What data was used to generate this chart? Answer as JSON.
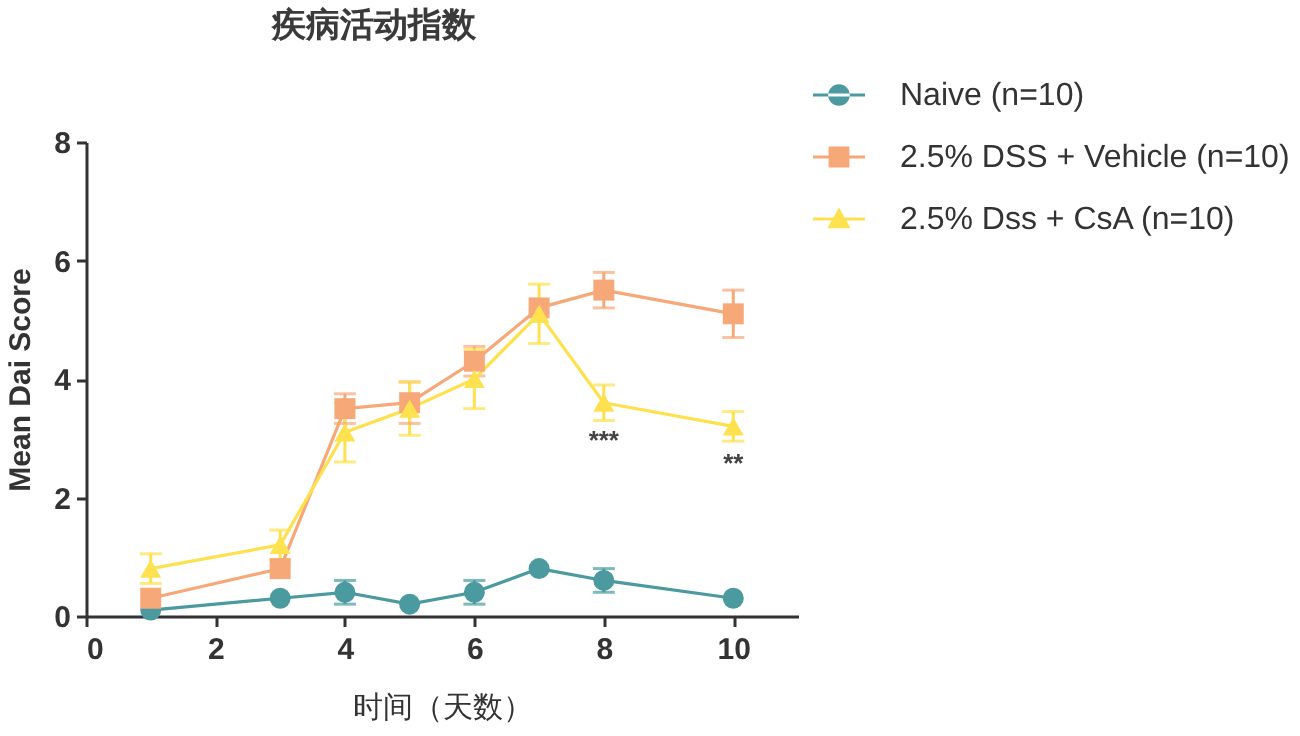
{
  "chart_data": {
    "type": "line",
    "title": "疾病活动指数",
    "xlabel": "时间（天数）",
    "ylabel": "Mean Dai Score",
    "x": [
      1,
      3,
      4,
      5,
      6,
      7,
      8,
      10
    ],
    "series": [
      {
        "name": "Naive (n=10)",
        "color": "#4a9aa0",
        "marker": "circle",
        "values": [
          0.1,
          0.3,
          0.4,
          0.2,
          0.4,
          0.8,
          0.6,
          0.3
        ],
        "errors": [
          null,
          null,
          0.2,
          null,
          0.2,
          null,
          0.2,
          null
        ]
      },
      {
        "name": "2.5% DSS + Vehicle (n=10)",
        "color": "#f7a878",
        "marker": "square",
        "values": [
          0.3,
          0.8,
          3.5,
          3.6,
          4.3,
          5.2,
          5.5,
          5.1
        ],
        "errors": [
          null,
          null,
          0.25,
          0.35,
          0.25,
          null,
          0.3,
          0.4
        ]
      },
      {
        "name": "2.5% Dss + CsA (n=10)",
        "color": "#fde14e",
        "marker": "triangle",
        "values": [
          0.8,
          1.2,
          3.1,
          3.5,
          4.0,
          5.1,
          3.6,
          3.2
        ],
        "errors": [
          0.25,
          0.25,
          0.5,
          0.45,
          0.5,
          0.5,
          0.3,
          0.25
        ]
      }
    ],
    "xlim": [
      0,
      11
    ],
    "ylim": [
      0,
      8
    ],
    "xticks": [
      0,
      2,
      4,
      6,
      8,
      10
    ],
    "yticks": [
      0,
      2,
      4,
      6,
      8
    ],
    "grid": false,
    "legend": "top right",
    "annotations": [
      {
        "text": "***",
        "x": 8,
        "y": 3.6
      },
      {
        "text": "**",
        "x": 10,
        "y": 3.2
      }
    ]
  }
}
